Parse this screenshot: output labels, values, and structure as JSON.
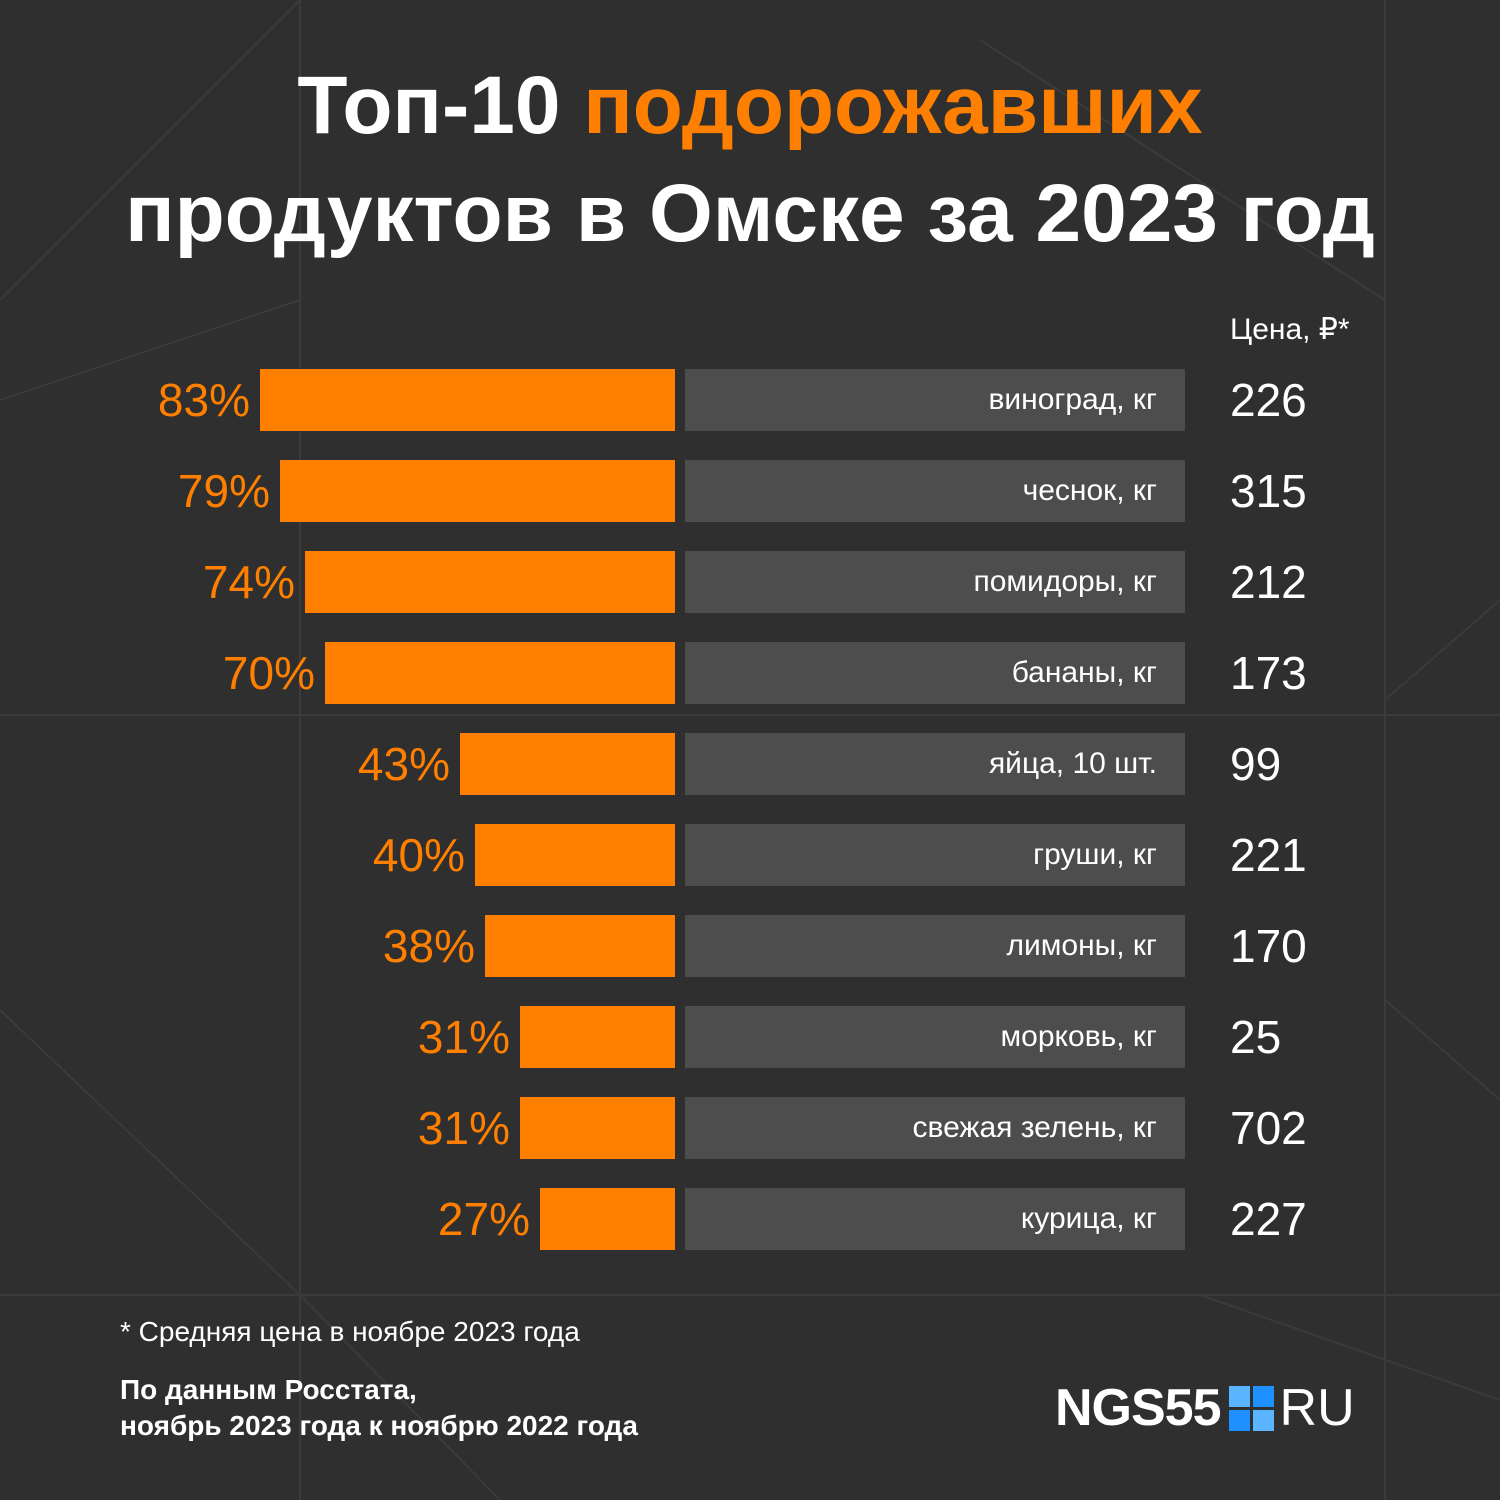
{
  "title": {
    "line1_white": "Топ-10 ",
    "line1_orange": "подорожавших",
    "line2": "продуктов в Омске за 2023 год"
  },
  "price_header": "Цена, ₽*",
  "colors": {
    "background": "#2f2f2f",
    "accent": "#ff7f00",
    "label_box": "#4d4d4d",
    "text": "#ffffff"
  },
  "chart_data": {
    "type": "bar",
    "orientation": "horizontal",
    "categories": [
      "виноград, кг",
      "чеснок, кг",
      "помидоры, кг",
      "бананы, кг",
      "яйца, 10 шт.",
      "груши, кг",
      "лимоны, кг",
      "морковь, кг",
      "свежая зелень, кг",
      "курица, кг"
    ],
    "series": [
      {
        "values": [
          83,
          79,
          74,
          70,
          43,
          40,
          38,
          31,
          31,
          27
        ]
      }
    ],
    "value_labels": [
      "83%",
      "79%",
      "74%",
      "70%",
      "43%",
      "40%",
      "38%",
      "31%",
      "31%",
      "27%"
    ],
    "prices": [
      "226",
      "315",
      "212",
      "173",
      "99",
      "221",
      "170",
      "25",
      "702",
      "227"
    ],
    "price_column_header": "Цена, ₽*"
  },
  "footnote": "* Средняя цена в ноябре 2023 года",
  "source": {
    "line1": "По данным Росстата,",
    "line2": "ноябрь 2023 года к ноябрю 2022 года"
  },
  "logo": {
    "text": "NGS55",
    "suffix": "RU",
    "icon": "ngs-square-logo-icon"
  }
}
